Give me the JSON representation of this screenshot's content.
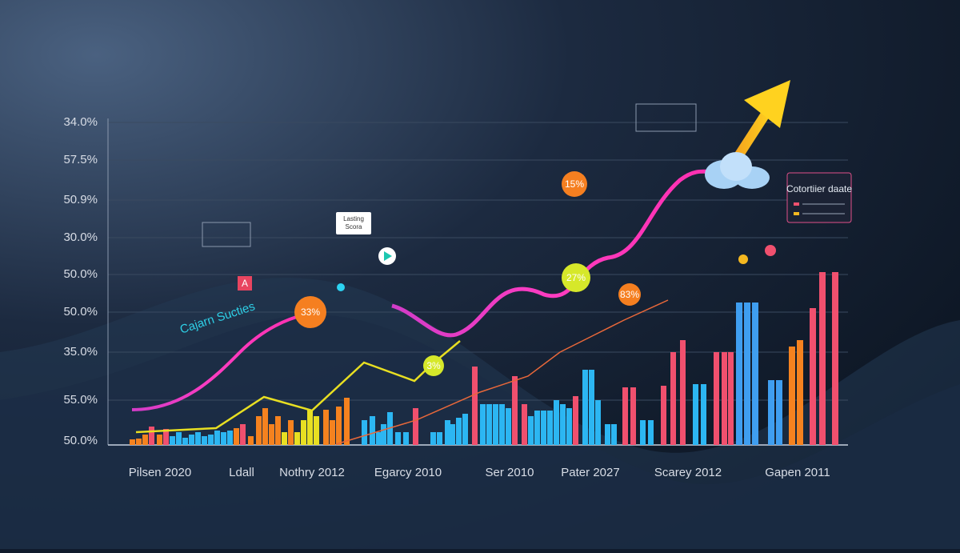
{
  "y_axis_labels": [
    "34.0%",
    "57.5%",
    "50.9%",
    "30.0%",
    "50.0%",
    "50.0%",
    "35.0%",
    "55.0%",
    "50.0%"
  ],
  "x_axis_labels": [
    "Pilsen 2020",
    "Ldall",
    "Nothry 2012",
    "Egarcy 2010",
    "Ser 2010",
    "Pater 2027",
    "Scarey 2012",
    "Gapen 2011"
  ],
  "bubbles": [
    "33%",
    "15%",
    "27%",
    "3%",
    "83%"
  ],
  "annotation": "Cajarn Sucties",
  "marker": "A",
  "legend_box": {
    "title": "Cotortiier daate"
  },
  "tooltips": [
    "Lasting",
    "Scora"
  ]
}
